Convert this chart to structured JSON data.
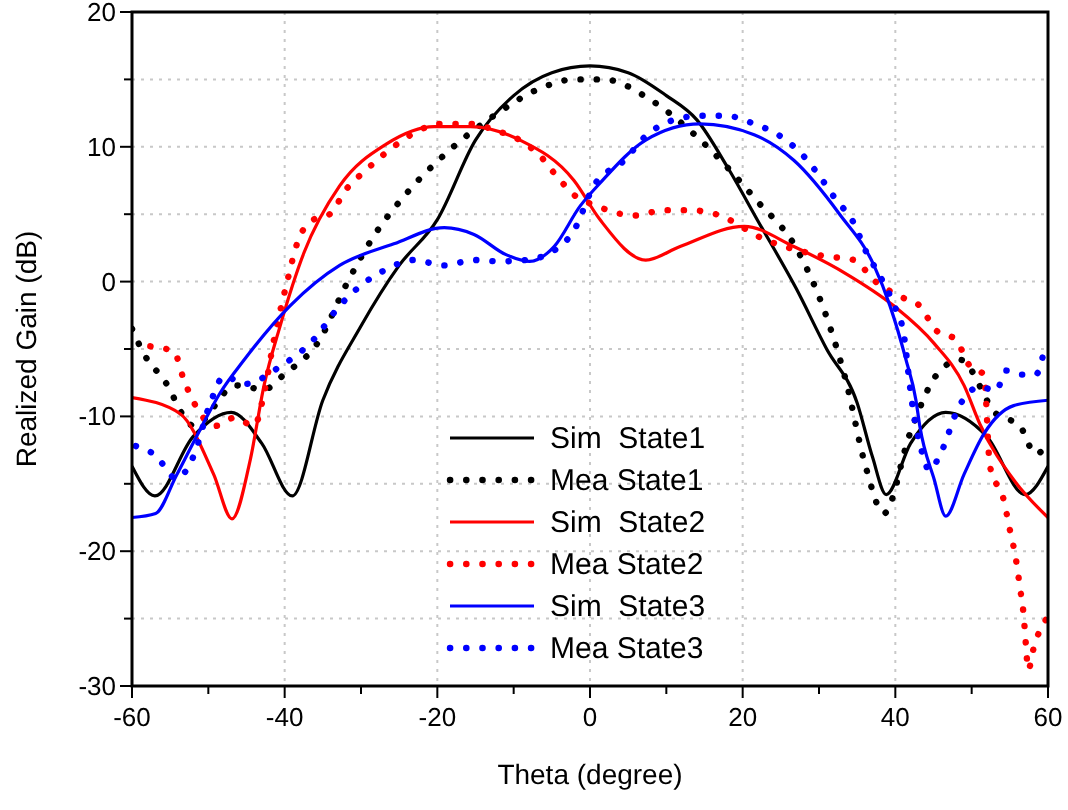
{
  "chart_data": {
    "type": "line",
    "xlabel": "Theta (degree)",
    "ylabel": "Realized Gain (dB)",
    "xlim": [
      -60,
      60
    ],
    "xticks": [
      -60,
      {
        "value": -50,
        "label": null
      },
      -40,
      {
        "value": -30,
        "label": null
      },
      -20,
      {
        "value": -10,
        "label": null
      },
      0,
      {
        "value": 10,
        "label": null
      },
      20,
      {
        "value": 30,
        "label": null
      },
      40,
      {
        "value": 50,
        "label": null
      },
      60
    ],
    "ylim": [
      -30,
      20
    ],
    "yticks": [
      -30,
      {
        "value": -25,
        "label": null
      },
      -20,
      {
        "value": -15,
        "label": null
      },
      -10,
      {
        "value": -5,
        "label": null
      },
      0,
      {
        "value": 5,
        "label": null
      },
      10,
      {
        "value": 15,
        "label": null
      },
      20
    ],
    "grid": true,
    "legend": "bottom",
    "marker": "none",
    "series": [
      {
        "name": "Sim  State1",
        "color": "#000000",
        "line_style": "solid",
        "x": [
          -60,
          -57,
          -52,
          -47,
          -43,
          -39,
          -35,
          -30,
          -25,
          -20,
          -15,
          -10,
          -5,
          0,
          5,
          10,
          14,
          18,
          22,
          27,
          31,
          35,
          37,
          38.8,
          42,
          46.6,
          52,
          57,
          60
        ],
        "values": [
          -13.7,
          -15.9,
          -11.5,
          -9.7,
          -12,
          -15.9,
          -8.8,
          -3.3,
          1.2,
          4.6,
          10.5,
          13.8,
          15.5,
          16,
          15.5,
          13.8,
          12,
          8.5,
          4.5,
          -0.5,
          -5,
          -9,
          -13,
          -15.8,
          -12,
          -9.7,
          -11.5,
          -15.8,
          -13.7
        ]
      },
      {
        "name": "Mea State1",
        "color": "#000000",
        "line_style": "dotted",
        "x": [
          -60,
          -58.4,
          -55.8,
          -51.9,
          -46.4,
          -42.7,
          -40.1,
          -35.4,
          -32,
          -28.3,
          -24.1,
          -18.9,
          -12.6,
          -5.8,
          -2.1,
          1.8,
          7.9,
          13.9,
          21.7,
          27.5,
          31.4,
          33.5,
          36.1,
          38.5,
          41.9,
          45.3,
          48.5,
          53.2,
          56.3,
          58.4,
          60
        ],
        "values": [
          -3.5,
          -5.4,
          -7.3,
          -10.7,
          -7.7,
          -8,
          -6.9,
          -4.3,
          -0.3,
          3.4,
          6.5,
          9.5,
          12.3,
          14.5,
          15,
          15,
          13.5,
          10.8,
          6.1,
          2,
          -3.3,
          -7.3,
          -13.7,
          -17.2,
          -11.3,
          -7,
          -5.8,
          -9.8,
          -10.7,
          -12.8,
          -12
        ]
      },
      {
        "name": "Sim  State2",
        "color": "#ff0000",
        "line_style": "solid",
        "x": [
          -60,
          -53.7,
          -49.3,
          -46.9,
          -44.5,
          -42.7,
          -40.6,
          -37.5,
          -32.8,
          -26.7,
          -20.4,
          -15.7,
          -9.2,
          -2.1,
          1.3,
          7.3,
          11.8,
          20.2,
          26.7,
          33.5,
          39.8,
          45.1,
          49,
          51.1,
          55.5,
          60
        ],
        "values": [
          -8.6,
          -9.8,
          -14.3,
          -17.6,
          -13.2,
          -7.7,
          -3.3,
          2.1,
          7.1,
          10.2,
          11.5,
          11.5,
          10.5,
          7.5,
          4.6,
          1.6,
          2.6,
          4.1,
          2.6,
          0.6,
          -1.8,
          -4.6,
          -7.7,
          -10.6,
          -14.7,
          -17.5
        ]
      },
      {
        "name": "Mea State2",
        "color": "#ff0000",
        "line_style": "dotted",
        "x": [
          -57.6,
          -54.5,
          -53.2,
          -49,
          -46.6,
          -44,
          -42.7,
          -41.4,
          -39.8,
          -38.2,
          -36.2,
          -34.1,
          -32,
          -29.3,
          -26.2,
          -23.1,
          -19.7,
          -15.7,
          -12.3,
          -9.2,
          -6.5,
          -3.9,
          -1.3,
          0,
          5.8,
          9.7,
          13.1,
          16.5,
          23,
          30.6,
          34.6,
          37.2,
          40.6,
          43.2,
          45.3,
          47.9,
          49.8,
          51.6,
          52.4,
          54.2,
          55,
          55.8,
          56.3,
          56.8,
          57.1,
          57.4,
          58.2,
          59.7
        ],
        "values": [
          -4.8,
          -5.2,
          -7.3,
          -10.7,
          -10.1,
          -10.7,
          -8.3,
          -4.3,
          -0.3,
          3.1,
          4.6,
          5,
          6.8,
          8.3,
          9.8,
          11,
          11.7,
          11.7,
          11.2,
          10.5,
          9.3,
          7.5,
          6.1,
          5.8,
          4.9,
          5.3,
          5.3,
          5,
          3.1,
          1.9,
          1.6,
          0.1,
          -1.1,
          -1.8,
          -3.6,
          -4.3,
          -6.3,
          -6.9,
          -13.7,
          -16.2,
          -18.4,
          -20.6,
          -22.6,
          -24.7,
          -26.9,
          -28.8,
          -27,
          -25.1
        ]
      },
      {
        "name": "Sim  State3",
        "color": "#0000ff",
        "line_style": "solid",
        "x": [
          -60,
          -56.9,
          -54.2,
          -51.1,
          -48.5,
          -45.3,
          -39.3,
          -32.8,
          -25.7,
          -19.1,
          -15.2,
          -11,
          -7.9,
          -4.7,
          -1.3,
          1.3,
          7.3,
          14.4,
          21.5,
          26.7,
          32.7,
          37.2,
          39.3,
          41.4,
          42.7,
          43.2,
          45.1,
          46.6,
          49,
          51.6,
          55.5,
          60
        ],
        "values": [
          -17.5,
          -17.2,
          -14.4,
          -11,
          -8.3,
          -5.8,
          -1.8,
          1.2,
          2.8,
          4,
          3.5,
          2,
          1.5,
          2.6,
          5.6,
          7.3,
          10.5,
          11.7,
          10.9,
          9,
          5,
          1.2,
          -1.8,
          -5.8,
          -8.8,
          -10.7,
          -14.7,
          -17.4,
          -14.3,
          -11.3,
          -9.2,
          -8.8
        ]
      },
      {
        "name": "Mea State3",
        "color": "#0000ff",
        "line_style": "dotted",
        "x": [
          -59.5,
          -56.9,
          -54.2,
          -51.9,
          -49.8,
          -47.9,
          -45.3,
          -40.6,
          -36.2,
          -32.8,
          -29.6,
          -26.7,
          -23.1,
          -19.1,
          -15.2,
          -11.8,
          -8.4,
          -4.7,
          -2.1,
          0.5,
          4.5,
          7.3,
          11,
          14.4,
          17.8,
          21.5,
          24.9,
          28,
          30.1,
          32.2,
          34.6,
          36.1,
          38,
          39.8,
          41.1,
          41.9,
          42.4,
          43.2,
          44.5,
          45.8,
          48.5,
          51.1,
          53.2,
          54.5,
          56.5,
          58.4,
          59.5
        ],
        "values": [
          -12.2,
          -12.9,
          -14.6,
          -12.9,
          -9.1,
          -7,
          -7.6,
          -6.3,
          -4.3,
          -1.8,
          -0.1,
          0.9,
          1.6,
          1.2,
          1.6,
          1.5,
          1.6,
          2.3,
          3.8,
          7.1,
          9,
          10.8,
          12,
          12.3,
          12.3,
          11.7,
          10.8,
          9.3,
          7.8,
          6.1,
          4.3,
          2.3,
          0.4,
          -1.7,
          -3.9,
          -7.7,
          -9.8,
          -12,
          -14,
          -12.9,
          -9.1,
          -7.8,
          -8.1,
          -6.6,
          -6.9,
          -6.9,
          -5.1
        ]
      }
    ]
  }
}
